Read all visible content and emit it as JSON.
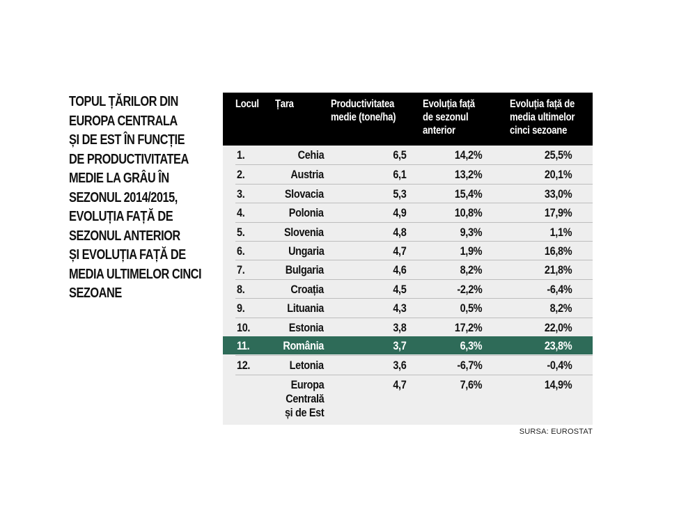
{
  "headline": [
    "TOPUL ȚĂRILOR DIN",
    "EUROPA CENTRALA",
    "ȘI DE EST ÎN FUNCȚIE",
    "DE PRODUCTIVITATEA",
    "MEDIE LA GRÂU ÎN",
    "SEZONUL 2014/2015,",
    "EVOLUȚIA FAȚĂ DE",
    "SEZONUL ANTERIOR",
    "ȘI EVOLUȚIA FAȚĂ DE",
    "MEDIA ULTIMELOR CINCI",
    "SEZOANE"
  ],
  "table": {
    "headers": {
      "rank": [
        "Locul"
      ],
      "country": [
        "Țara"
      ],
      "productivity": [
        "Productivitatea",
        "medie (tone/ha)"
      ],
      "evo_prev": [
        "Evoluția față",
        "de sezonul",
        "anterior"
      ],
      "evo_avg": [
        "Evoluția față de",
        "media ultimelor",
        "cinci sezoane"
      ]
    },
    "rows": [
      {
        "rank": "1.",
        "country": "Cehia",
        "productivity": "6,5",
        "evo_prev": "14,2%",
        "evo_avg": "25,5%"
      },
      {
        "rank": "2.",
        "country": "Austria",
        "productivity": "6,1",
        "evo_prev": "13,2%",
        "evo_avg": "20,1%"
      },
      {
        "rank": "3.",
        "country": "Slovacia",
        "productivity": "5,3",
        "evo_prev": "15,4%",
        "evo_avg": "33,0%"
      },
      {
        "rank": "4.",
        "country": "Polonia",
        "productivity": "4,9",
        "evo_prev": "10,8%",
        "evo_avg": "17,9%"
      },
      {
        "rank": "5.",
        "country": "Slovenia",
        "productivity": "4,8",
        "evo_prev": "9,3%",
        "evo_avg": "1,1%"
      },
      {
        "rank": "6.",
        "country": "Ungaria",
        "productivity": "4,7",
        "evo_prev": "1,9%",
        "evo_avg": "16,8%"
      },
      {
        "rank": "7.",
        "country": "Bulgaria",
        "productivity": "4,6",
        "evo_prev": "8,2%",
        "evo_avg": "21,8%"
      },
      {
        "rank": "8.",
        "country": "Croația",
        "productivity": "4,5",
        "evo_prev": "-2,2%",
        "evo_avg": "-6,4%"
      },
      {
        "rank": "9.",
        "country": "Lituania",
        "productivity": "4,3",
        "evo_prev": "0,5%",
        "evo_avg": "8,2%"
      },
      {
        "rank": "10.",
        "country": "Estonia",
        "productivity": "3,8",
        "evo_prev": "17,2%",
        "evo_avg": "22,0%"
      },
      {
        "rank": "11.",
        "country": "România",
        "productivity": "3,7",
        "evo_prev": "6,3%",
        "evo_avg": "23,8%",
        "highlight": true
      },
      {
        "rank": "12.",
        "country": "Letonia",
        "productivity": "3,6",
        "evo_prev": "-6,7%",
        "evo_avg": "-0,4%"
      }
    ],
    "final_row": {
      "rank": "",
      "country": [
        "Europa",
        "Centrală",
        "și de Est"
      ],
      "productivity": "4,7",
      "evo_prev": "7,6%",
      "evo_avg": "14,9%"
    },
    "highlight_color": "#2e6b58",
    "header_background": "#000000",
    "body_background": "#eeeeee"
  },
  "source": "SURSA: EUROSTAT"
}
